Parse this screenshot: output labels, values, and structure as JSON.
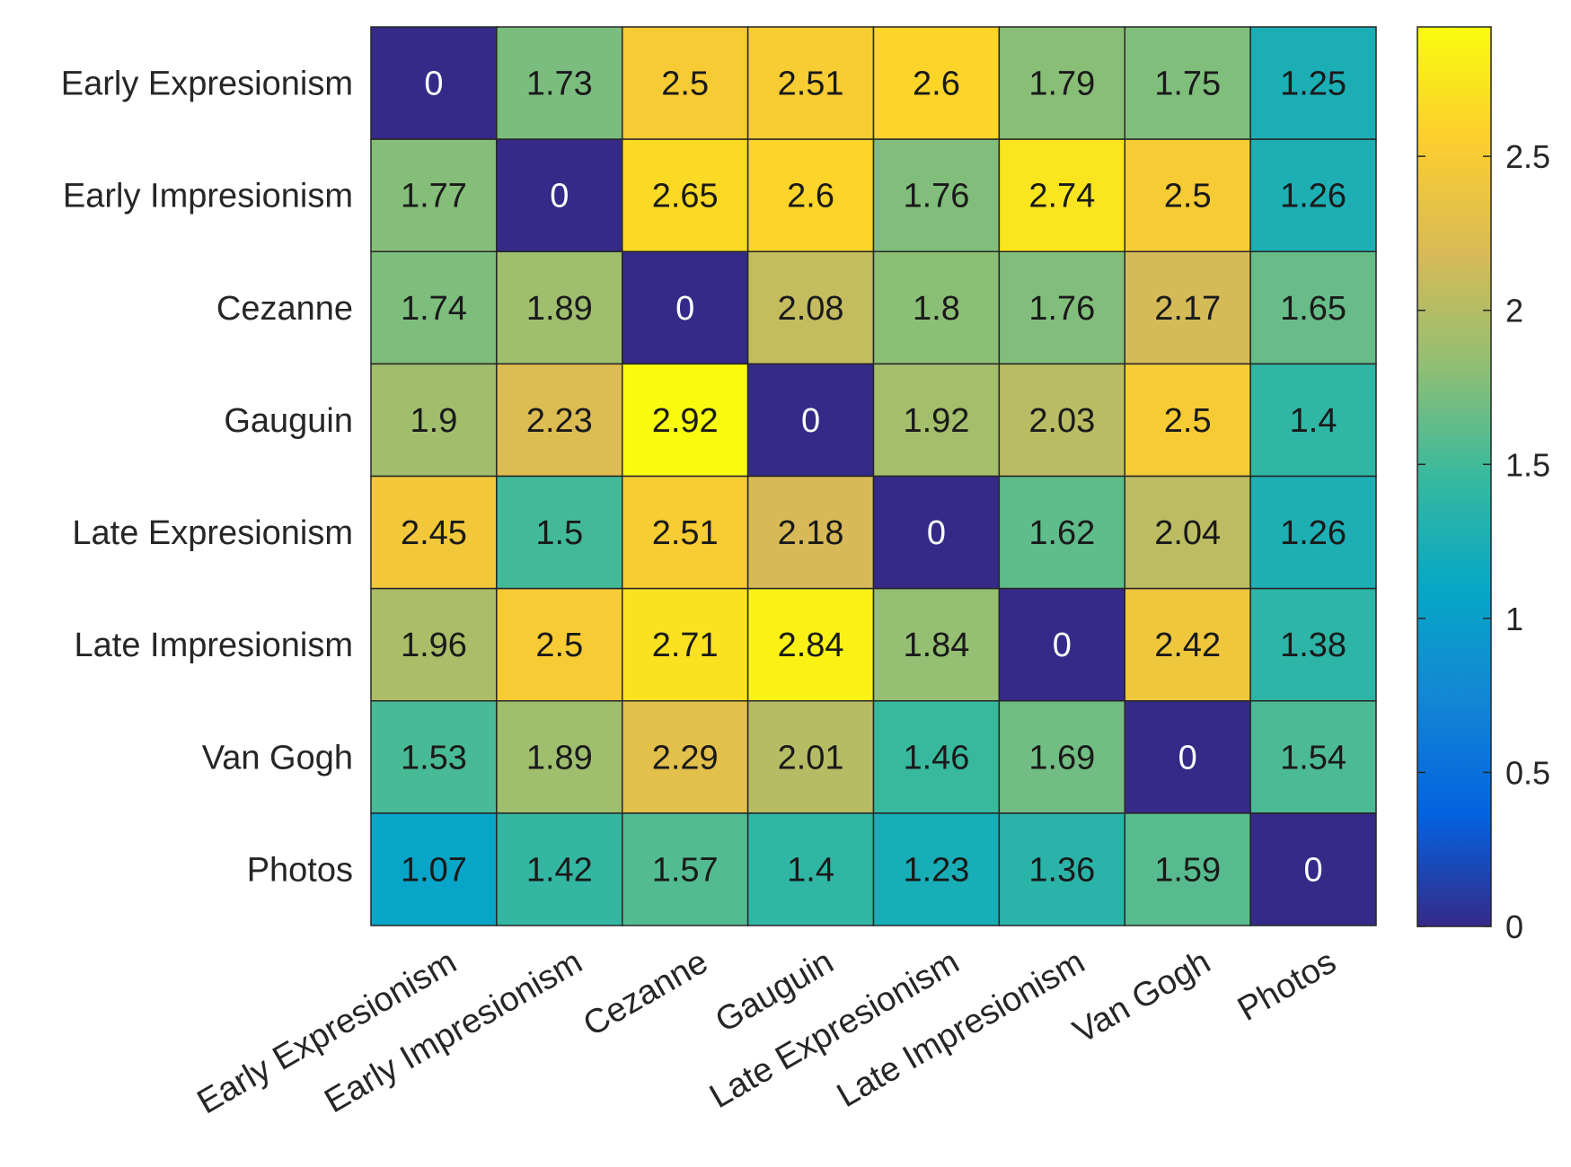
{
  "chart_data": {
    "type": "heatmap",
    "title": "",
    "xlabel": "",
    "ylabel": "",
    "row_labels": [
      "Early Expresionism",
      "Early Impresionism",
      "Cezanne",
      "Gauguin",
      "Late Expresionism",
      "Late Impresionism",
      "Van Gogh",
      "Photos"
    ],
    "col_labels": [
      "Early Expresionism",
      "Early Impresionism",
      "Cezanne",
      "Gauguin",
      "Late Expresionism",
      "Late Impresionism",
      "Van Gogh",
      "Photos"
    ],
    "values": [
      [
        0,
        1.73,
        2.5,
        2.51,
        2.6,
        1.79,
        1.75,
        1.25
      ],
      [
        1.77,
        0,
        2.65,
        2.6,
        1.76,
        2.74,
        2.5,
        1.26
      ],
      [
        1.74,
        1.89,
        0,
        2.08,
        1.8,
        1.76,
        2.17,
        1.65
      ],
      [
        1.9,
        2.23,
        2.92,
        0,
        1.92,
        2.03,
        2.5,
        1.4
      ],
      [
        2.45,
        1.5,
        2.51,
        2.18,
        0,
        1.62,
        2.04,
        1.26
      ],
      [
        1.96,
        2.5,
        2.71,
        2.84,
        1.84,
        0,
        2.42,
        1.38
      ],
      [
        1.53,
        1.89,
        2.29,
        2.01,
        1.46,
        1.69,
        0,
        1.54
      ],
      [
        1.07,
        1.42,
        1.57,
        1.4,
        1.23,
        1.36,
        1.59,
        0
      ]
    ],
    "colorbar": {
      "range": [
        0,
        2.92
      ],
      "ticks": [
        0,
        0.5,
        1,
        1.5,
        2,
        2.5
      ],
      "tick_labels": [
        "0",
        "0.5",
        "1",
        "1.5",
        "2",
        "2.5"
      ],
      "colormap": "parula"
    }
  }
}
